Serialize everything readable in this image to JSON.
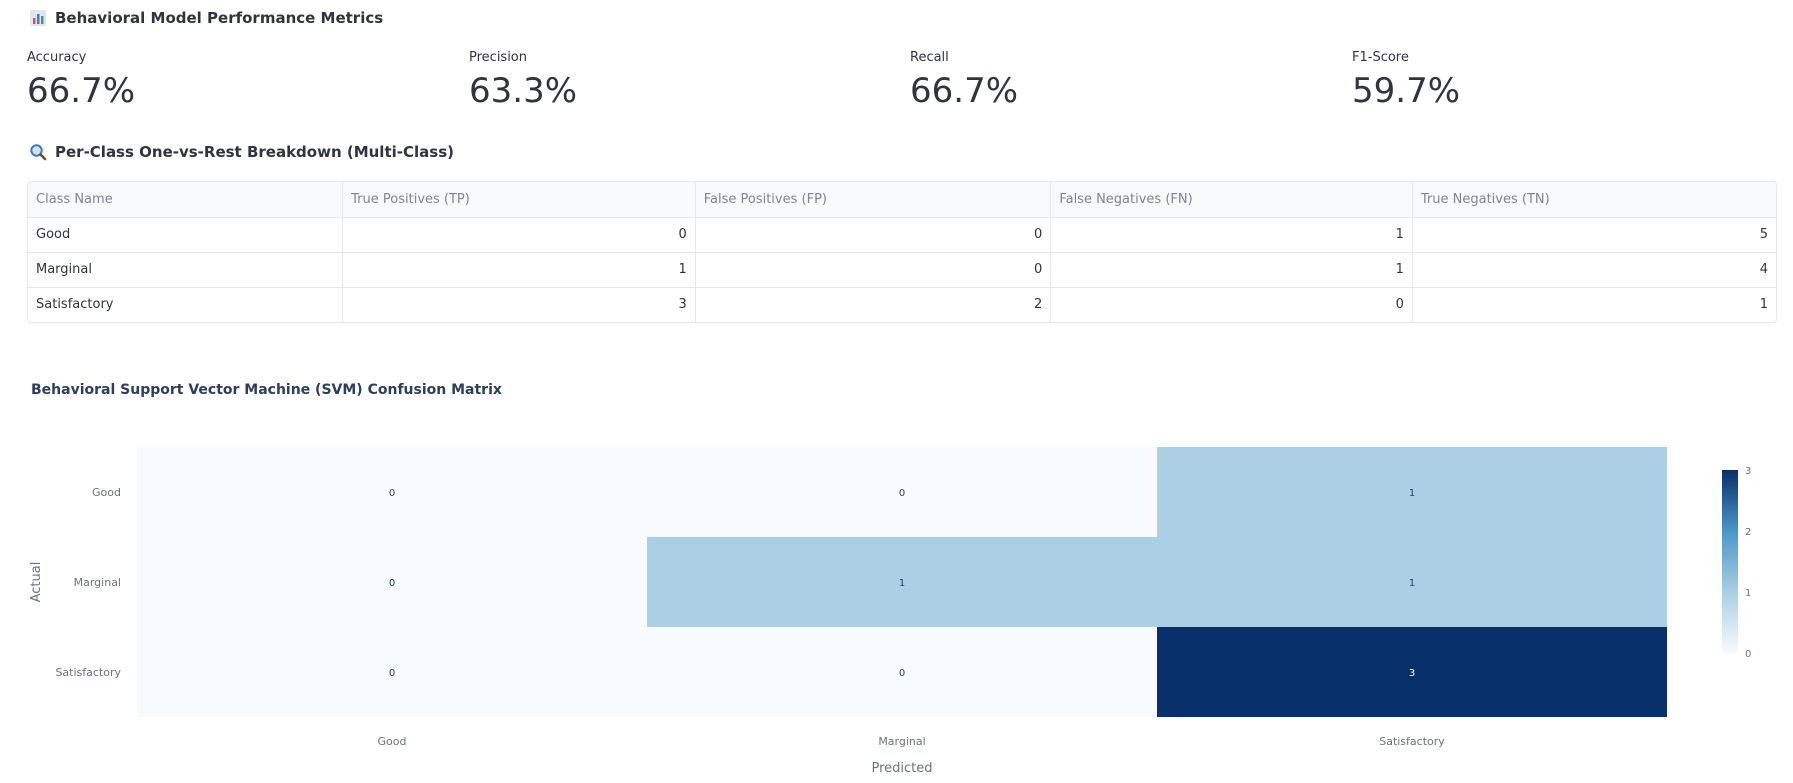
{
  "metrics_section": {
    "title": "Behavioral Model Performance Metrics",
    "icon": "bar-chart-icon",
    "items": [
      {
        "label": "Accuracy",
        "value": "66.7%"
      },
      {
        "label": "Precision",
        "value": "63.3%"
      },
      {
        "label": "Recall",
        "value": "66.7%"
      },
      {
        "label": "F1-Score",
        "value": "59.7%"
      }
    ]
  },
  "breakdown_section": {
    "title": "Per-Class One-vs-Rest Breakdown (Multi-Class)",
    "icon": "magnifier-icon",
    "columns": [
      "Class Name",
      "True Positives (TP)",
      "False Positives (FP)",
      "False Negatives (FN)",
      "True Negatives (TN)"
    ],
    "rows": [
      [
        "Good",
        "0",
        "0",
        "1",
        "5"
      ],
      [
        "Marginal",
        "1",
        "0",
        "1",
        "4"
      ],
      [
        "Satisfactory",
        "3",
        "2",
        "0",
        "1"
      ]
    ]
  },
  "chart_data": {
    "type": "heatmap",
    "title": "Behavioral Support Vector Machine (SVM) Confusion Matrix",
    "xlabel": "Predicted",
    "ylabel": "Actual",
    "x": [
      "Good",
      "Marginal",
      "Satisfactory"
    ],
    "y": [
      "Good",
      "Marginal",
      "Satisfactory"
    ],
    "z": [
      [
        0,
        0,
        1
      ],
      [
        0,
        1,
        1
      ],
      [
        0,
        0,
        3
      ]
    ],
    "colorscale": "Blues",
    "colorbar": {
      "ticks": [
        0,
        1,
        2,
        3
      ],
      "range": [
        0,
        3
      ]
    },
    "colors": {
      "low": "#f7fbff",
      "mid": "#abcfe5",
      "high": "#08306b"
    }
  }
}
